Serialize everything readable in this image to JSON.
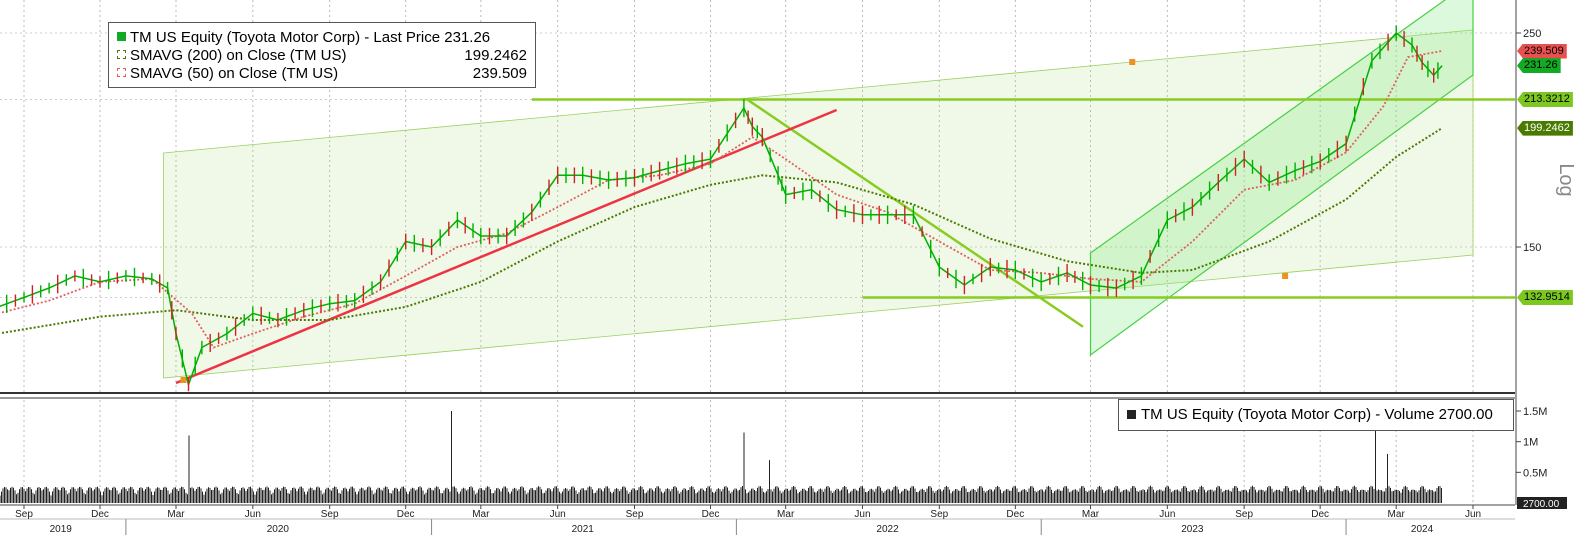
{
  "chart_data": [
    {
      "type": "line",
      "panel": "price",
      "title": "TM US Equity (Toyota Motor Corp) - Last Price 231.26",
      "scale": "Log",
      "yticks": [
        150,
        250
      ],
      "legend_placement": "top-left",
      "grid": true,
      "x_ticks": [
        {
          "label": "Sep",
          "date": "2019-09-01"
        },
        {
          "label": "Dec",
          "date": "2019-12-01"
        },
        {
          "label": "Mar",
          "date": "2020-03-01"
        },
        {
          "label": "Jun",
          "date": "2020-06-01"
        },
        {
          "label": "Sep",
          "date": "2020-09-01"
        },
        {
          "label": "Dec",
          "date": "2020-12-01"
        },
        {
          "label": "Mar",
          "date": "2021-03-01"
        },
        {
          "label": "Jun",
          "date": "2021-06-01"
        },
        {
          "label": "Sep",
          "date": "2021-09-01"
        },
        {
          "label": "Dec",
          "date": "2021-12-01"
        },
        {
          "label": "Mar",
          "date": "2022-03-01"
        },
        {
          "label": "Jun",
          "date": "2022-06-01"
        },
        {
          "label": "Sep",
          "date": "2022-09-01"
        },
        {
          "label": "Dec",
          "date": "2022-12-01"
        },
        {
          "label": "Mar",
          "date": "2023-03-01"
        },
        {
          "label": "Jun",
          "date": "2023-06-01"
        },
        {
          "label": "Sep",
          "date": "2023-09-01"
        },
        {
          "label": "Dec",
          "date": "2023-12-01"
        },
        {
          "label": "Mar",
          "date": "2024-03-01"
        },
        {
          "label": "Jun",
          "date": "2024-06-01"
        }
      ],
      "years": [
        {
          "label": "2019",
          "date": "2019-10-15"
        },
        {
          "label": "2020",
          "date": "2020-07-01"
        },
        {
          "label": "2021",
          "date": "2021-07-01"
        },
        {
          "label": "2022",
          "date": "2022-07-01"
        },
        {
          "label": "2023",
          "date": "2023-07-01"
        },
        {
          "label": "2024",
          "date": "2024-04-01"
        }
      ],
      "series": [
        {
          "name": "TM US Equity (Toyota Motor Corp) - Last Price",
          "last": "231.26",
          "color": "#00b000",
          "points": [
            [
              "2019-08-01",
              130
            ],
            [
              "2019-09-01",
              133
            ],
            [
              "2019-10-01",
              136
            ],
            [
              "2019-11-01",
              140
            ],
            [
              "2019-12-01",
              138
            ],
            [
              "2020-01-01",
              140
            ],
            [
              "2020-02-01",
              139
            ],
            [
              "2020-02-20",
              136
            ],
            [
              "2020-03-01",
              122
            ],
            [
              "2020-03-16",
              108
            ],
            [
              "2020-04-01",
              118
            ],
            [
              "2020-05-01",
              122
            ],
            [
              "2020-06-01",
              128
            ],
            [
              "2020-07-01",
              126
            ],
            [
              "2020-08-01",
              129
            ],
            [
              "2020-09-01",
              131
            ],
            [
              "2020-10-01",
              132
            ],
            [
              "2020-11-01",
              138
            ],
            [
              "2020-12-01",
              152
            ],
            [
              "2021-01-01",
              150
            ],
            [
              "2021-02-01",
              160
            ],
            [
              "2021-03-01",
              154
            ],
            [
              "2021-04-01",
              154
            ],
            [
              "2021-05-01",
              163
            ],
            [
              "2021-06-01",
              178
            ],
            [
              "2021-07-01",
              178
            ],
            [
              "2021-08-01",
              176
            ],
            [
              "2021-09-01",
              177
            ],
            [
              "2021-10-01",
              180
            ],
            [
              "2021-11-01",
              183
            ],
            [
              "2021-12-01",
              185
            ],
            [
              "2022-01-10",
              209
            ],
            [
              "2022-01-20",
              200
            ],
            [
              "2022-02-01",
              195
            ],
            [
              "2022-02-20",
              178
            ],
            [
              "2022-03-01",
              170
            ],
            [
              "2022-04-01",
              172
            ],
            [
              "2022-05-01",
              164
            ],
            [
              "2022-06-01",
              162
            ],
            [
              "2022-07-01",
              162
            ],
            [
              "2022-08-01",
              162
            ],
            [
              "2022-09-01",
              143
            ],
            [
              "2022-10-01",
              137
            ],
            [
              "2022-11-01",
              143
            ],
            [
              "2022-12-01",
              142
            ],
            [
              "2023-01-01",
              138
            ],
            [
              "2023-02-01",
              141
            ],
            [
              "2023-03-01",
              137
            ],
            [
              "2023-04-01",
              136
            ],
            [
              "2023-05-01",
              140
            ],
            [
              "2023-06-01",
              160
            ],
            [
              "2023-07-01",
              165
            ],
            [
              "2023-08-01",
              175
            ],
            [
              "2023-09-01",
              185
            ],
            [
              "2023-10-01",
              175
            ],
            [
              "2023-11-01",
              180
            ],
            [
              "2023-12-01",
              184
            ],
            [
              "2024-01-01",
              192
            ],
            [
              "2024-02-01",
              234
            ],
            [
              "2024-03-01",
              250
            ],
            [
              "2024-03-20",
              243
            ],
            [
              "2024-04-01",
              233
            ],
            [
              "2024-04-15",
              226
            ],
            [
              "2024-04-25",
              231.26
            ]
          ]
        },
        {
          "name": "SMAVG (200)  on Close (TM US)",
          "last": "199.2462",
          "color": "#4a7a00",
          "points": [
            [
              "2019-08-01",
              122
            ],
            [
              "2019-12-01",
              127
            ],
            [
              "2020-03-01",
              129
            ],
            [
              "2020-06-01",
              126
            ],
            [
              "2020-09-01",
              126
            ],
            [
              "2020-12-01",
              130
            ],
            [
              "2021-03-01",
              138
            ],
            [
              "2021-06-01",
              152
            ],
            [
              "2021-09-01",
              165
            ],
            [
              "2021-12-01",
              174
            ],
            [
              "2022-02-01",
              178
            ],
            [
              "2022-05-01",
              175
            ],
            [
              "2022-08-01",
              166
            ],
            [
              "2022-11-01",
              153
            ],
            [
              "2023-02-01",
              145
            ],
            [
              "2023-05-01",
              141
            ],
            [
              "2023-07-01",
              142
            ],
            [
              "2023-10-01",
              152
            ],
            [
              "2024-01-01",
              168
            ],
            [
              "2024-03-01",
              186
            ],
            [
              "2024-04-25",
              199.2462
            ]
          ]
        },
        {
          "name": "SMAVG (50)  on Close (TM US)",
          "last": "239.509",
          "color": "#e06060",
          "points": [
            [
              "2019-08-01",
              128
            ],
            [
              "2019-10-01",
              132
            ],
            [
              "2019-12-01",
              138
            ],
            [
              "2020-02-01",
              139
            ],
            [
              "2020-03-20",
              128
            ],
            [
              "2020-04-15",
              118
            ],
            [
              "2020-06-01",
              122
            ],
            [
              "2020-08-01",
              127
            ],
            [
              "2020-10-01",
              131
            ],
            [
              "2020-12-01",
              140
            ],
            [
              "2021-02-01",
              150
            ],
            [
              "2021-04-01",
              155
            ],
            [
              "2021-06-01",
              165
            ],
            [
              "2021-08-01",
              176
            ],
            [
              "2021-10-01",
              178
            ],
            [
              "2021-12-01",
              183
            ],
            [
              "2022-01-20",
              195
            ],
            [
              "2022-03-01",
              185
            ],
            [
              "2022-05-01",
              170
            ],
            [
              "2022-07-01",
              163
            ],
            [
              "2022-09-01",
              152
            ],
            [
              "2022-11-01",
              142
            ],
            [
              "2023-01-01",
              141
            ],
            [
              "2023-03-01",
              139
            ],
            [
              "2023-05-01",
              138
            ],
            [
              "2023-07-01",
              152
            ],
            [
              "2023-09-01",
              172
            ],
            [
              "2023-11-01",
              176
            ],
            [
              "2024-01-01",
              188
            ],
            [
              "2024-02-15",
              210
            ],
            [
              "2024-03-15",
              236
            ],
            [
              "2024-04-25",
              239.509
            ]
          ]
        }
      ],
      "price_tags": [
        {
          "label": "239.509",
          "value": 239.509,
          "color": "#e85050",
          "text_color": "#000000"
        },
        {
          "label": "231.26",
          "value": 231.26,
          "color": "#11aa22",
          "text_color": "#000000"
        },
        {
          "label": "213.3212",
          "value": 213.3212,
          "color": "#7cc820",
          "text_color": "#000000"
        },
        {
          "label": "199.2462",
          "value": 199.2462,
          "color": "#4a7a00",
          "text_color": "#ffffff"
        },
        {
          "label": "132.9514",
          "value": 132.9514,
          "color": "#7cc820",
          "text_color": "#000000"
        }
      ]
    },
    {
      "type": "bar",
      "panel": "volume",
      "title": "TM US Equity (Toyota Motor Corp) - Volume 2700.00",
      "yticks": [
        {
          "label": "1.5M",
          "value": 1500000
        },
        {
          "label": "1M",
          "value": 1000000
        },
        {
          "label": "0.5M",
          "value": 500000
        }
      ],
      "last_label": "2700.00",
      "color": "#222222",
      "spikes": [
        [
          "2020-03-16",
          1100000
        ],
        [
          "2021-01-25",
          1500000
        ],
        [
          "2022-01-10",
          1150000
        ],
        [
          "2022-02-10",
          700000
        ],
        [
          "2023-05-11",
          1050000
        ],
        [
          "2024-02-06",
          1250000
        ],
        [
          "2024-02-20",
          800000
        ]
      ]
    }
  ]
}
